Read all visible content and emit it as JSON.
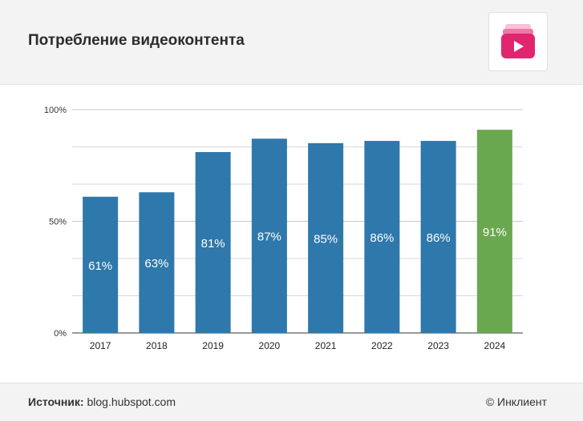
{
  "header": {
    "title": "Потребление видеоконтента"
  },
  "logo": {
    "icon": "video-play-stack-icon",
    "colors": [
      "#f7c2d6",
      "#ee78a9",
      "#e0266f"
    ]
  },
  "footer": {
    "source_label": "Источник:",
    "source_value": "blog.hubspot.com",
    "copyright": "© Инклиент"
  },
  "colors": {
    "bar_default": "#2e78ab",
    "bar_highlight": "#6aa84f",
    "grid": "#d9d9d9",
    "axis": "#333333",
    "label": "#ffffff"
  },
  "chart_data": {
    "type": "bar",
    "categories": [
      "2017",
      "2018",
      "2019",
      "2020",
      "2021",
      "2022",
      "2023",
      "2024"
    ],
    "values": [
      61,
      63,
      81,
      87,
      85,
      86,
      86,
      91
    ],
    "data_labels": [
      "61%",
      "63%",
      "81%",
      "87%",
      "85%",
      "86%",
      "86%",
      "91%"
    ],
    "highlight_category": "2024",
    "ylim": [
      0,
      100
    ],
    "yticks": [
      0,
      50,
      100
    ],
    "ytick_labels": [
      "0%",
      "50%",
      "100%"
    ],
    "minor_grid_step": 16.6667,
    "grid": true,
    "title": "",
    "xlabel": "",
    "ylabel": ""
  }
}
